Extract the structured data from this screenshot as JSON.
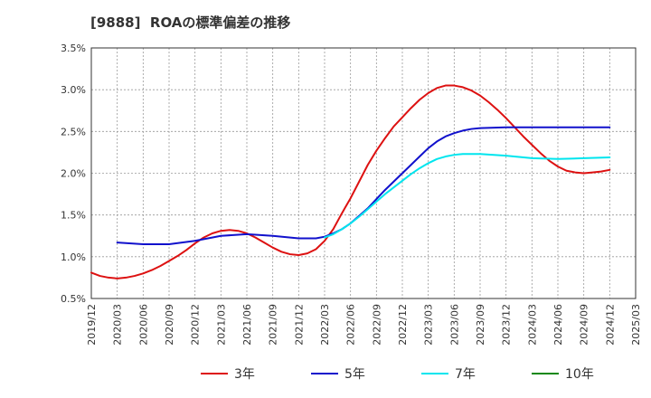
{
  "chart_data": {
    "type": "line",
    "title": "[9888]  ROAの標準偏差の推移",
    "xlabel": "",
    "ylabel": "",
    "x_ticks": [
      "2019/12",
      "2020/03",
      "2020/06",
      "2020/09",
      "2020/12",
      "2021/03",
      "2021/06",
      "2021/09",
      "2021/12",
      "2022/03",
      "2022/06",
      "2022/09",
      "2022/12",
      "2023/03",
      "2023/06",
      "2023/09",
      "2023/12",
      "2024/03",
      "2024/06",
      "2024/09",
      "2024/12",
      "2025/03"
    ],
    "y_ticks": [
      "0.5%",
      "1.0%",
      "1.5%",
      "2.0%",
      "2.5%",
      "3.0%",
      "3.5%"
    ],
    "ylim": [
      0.5,
      3.5
    ],
    "grid": true,
    "legend_position": "bottom",
    "series": [
      {
        "name": "3年",
        "color": "#dd1111",
        "points": [
          [
            "2019/12",
            0.81
          ],
          [
            "2020/01",
            0.77
          ],
          [
            "2020/02",
            0.75
          ],
          [
            "2020/03",
            0.74
          ],
          [
            "2020/04",
            0.75
          ],
          [
            "2020/05",
            0.77
          ],
          [
            "2020/06",
            0.8
          ],
          [
            "2020/07",
            0.84
          ],
          [
            "2020/08",
            0.89
          ],
          [
            "2020/09",
            0.95
          ],
          [
            "2020/10",
            1.01
          ],
          [
            "2020/11",
            1.08
          ],
          [
            "2020/12",
            1.16
          ],
          [
            "2021/01",
            1.23
          ],
          [
            "2021/02",
            1.28
          ],
          [
            "2021/03",
            1.31
          ],
          [
            "2021/04",
            1.32
          ],
          [
            "2021/05",
            1.31
          ],
          [
            "2021/06",
            1.28
          ],
          [
            "2021/07",
            1.23
          ],
          [
            "2021/08",
            1.17
          ],
          [
            "2021/09",
            1.11
          ],
          [
            "2021/10",
            1.06
          ],
          [
            "2021/11",
            1.03
          ],
          [
            "2021/12",
            1.02
          ],
          [
            "2022/01",
            1.04
          ],
          [
            "2022/02",
            1.09
          ],
          [
            "2022/03",
            1.19
          ],
          [
            "2022/04",
            1.33
          ],
          [
            "2022/05",
            1.52
          ],
          [
            "2022/06",
            1.7
          ],
          [
            "2022/07",
            1.9
          ],
          [
            "2022/08",
            2.1
          ],
          [
            "2022/09",
            2.27
          ],
          [
            "2022/10",
            2.42
          ],
          [
            "2022/11",
            2.56
          ],
          [
            "2022/12",
            2.67
          ],
          [
            "2023/01",
            2.78
          ],
          [
            "2023/02",
            2.88
          ],
          [
            "2023/03",
            2.96
          ],
          [
            "2023/04",
            3.02
          ],
          [
            "2023/05",
            3.05
          ],
          [
            "2023/06",
            3.05
          ],
          [
            "2023/07",
            3.03
          ],
          [
            "2023/08",
            2.99
          ],
          [
            "2023/09",
            2.93
          ],
          [
            "2023/10",
            2.85
          ],
          [
            "2023/11",
            2.76
          ],
          [
            "2023/12",
            2.66
          ],
          [
            "2024/01",
            2.55
          ],
          [
            "2024/02",
            2.44
          ],
          [
            "2024/03",
            2.34
          ],
          [
            "2024/04",
            2.24
          ],
          [
            "2024/05",
            2.15
          ],
          [
            "2024/06",
            2.08
          ],
          [
            "2024/07",
            2.03
          ],
          [
            "2024/08",
            2.01
          ],
          [
            "2024/09",
            2.0
          ],
          [
            "2024/10",
            2.01
          ],
          [
            "2024/11",
            2.02
          ],
          [
            "2024/12",
            2.04
          ]
        ]
      },
      {
        "name": "5年",
        "color": "#1111cc",
        "points": [
          [
            "2020/03",
            1.17
          ],
          [
            "2020/06",
            1.15
          ],
          [
            "2020/09",
            1.15
          ],
          [
            "2020/12",
            1.19
          ],
          [
            "2021/03",
            1.25
          ],
          [
            "2021/06",
            1.27
          ],
          [
            "2021/09",
            1.25
          ],
          [
            "2021/12",
            1.22
          ],
          [
            "2022/02",
            1.22
          ],
          [
            "2022/03",
            1.24
          ],
          [
            "2022/04",
            1.28
          ],
          [
            "2022/05",
            1.33
          ],
          [
            "2022/06",
            1.4
          ],
          [
            "2022/07",
            1.49
          ],
          [
            "2022/08",
            1.58
          ],
          [
            "2022/09",
            1.69
          ],
          [
            "2022/10",
            1.8
          ],
          [
            "2022/11",
            1.9
          ],
          [
            "2022/12",
            2.0
          ],
          [
            "2023/01",
            2.1
          ],
          [
            "2023/02",
            2.2
          ],
          [
            "2023/03",
            2.3
          ],
          [
            "2023/04",
            2.38
          ],
          [
            "2023/05",
            2.44
          ],
          [
            "2023/06",
            2.48
          ],
          [
            "2023/07",
            2.51
          ],
          [
            "2023/08",
            2.53
          ],
          [
            "2023/09",
            2.54
          ],
          [
            "2023/12",
            2.55
          ],
          [
            "2024/03",
            2.55
          ],
          [
            "2024/06",
            2.55
          ],
          [
            "2024/09",
            2.55
          ],
          [
            "2024/12",
            2.55
          ]
        ]
      },
      {
        "name": "7年",
        "color": "#00e5ee",
        "points": [
          [
            "2022/03",
            1.23
          ],
          [
            "2022/04",
            1.27
          ],
          [
            "2022/05",
            1.33
          ],
          [
            "2022/06",
            1.4
          ],
          [
            "2022/07",
            1.48
          ],
          [
            "2022/08",
            1.57
          ],
          [
            "2022/09",
            1.66
          ],
          [
            "2022/10",
            1.75
          ],
          [
            "2022/11",
            1.83
          ],
          [
            "2022/12",
            1.91
          ],
          [
            "2023/01",
            1.99
          ],
          [
            "2023/02",
            2.06
          ],
          [
            "2023/03",
            2.12
          ],
          [
            "2023/04",
            2.17
          ],
          [
            "2023/05",
            2.2
          ],
          [
            "2023/06",
            2.22
          ],
          [
            "2023/07",
            2.23
          ],
          [
            "2023/08",
            2.23
          ],
          [
            "2023/09",
            2.23
          ],
          [
            "2023/12",
            2.21
          ],
          [
            "2024/03",
            2.18
          ],
          [
            "2024/06",
            2.17
          ],
          [
            "2024/09",
            2.18
          ],
          [
            "2024/12",
            2.19
          ]
        ]
      },
      {
        "name": "10年",
        "color": "#118811",
        "points": []
      }
    ]
  }
}
